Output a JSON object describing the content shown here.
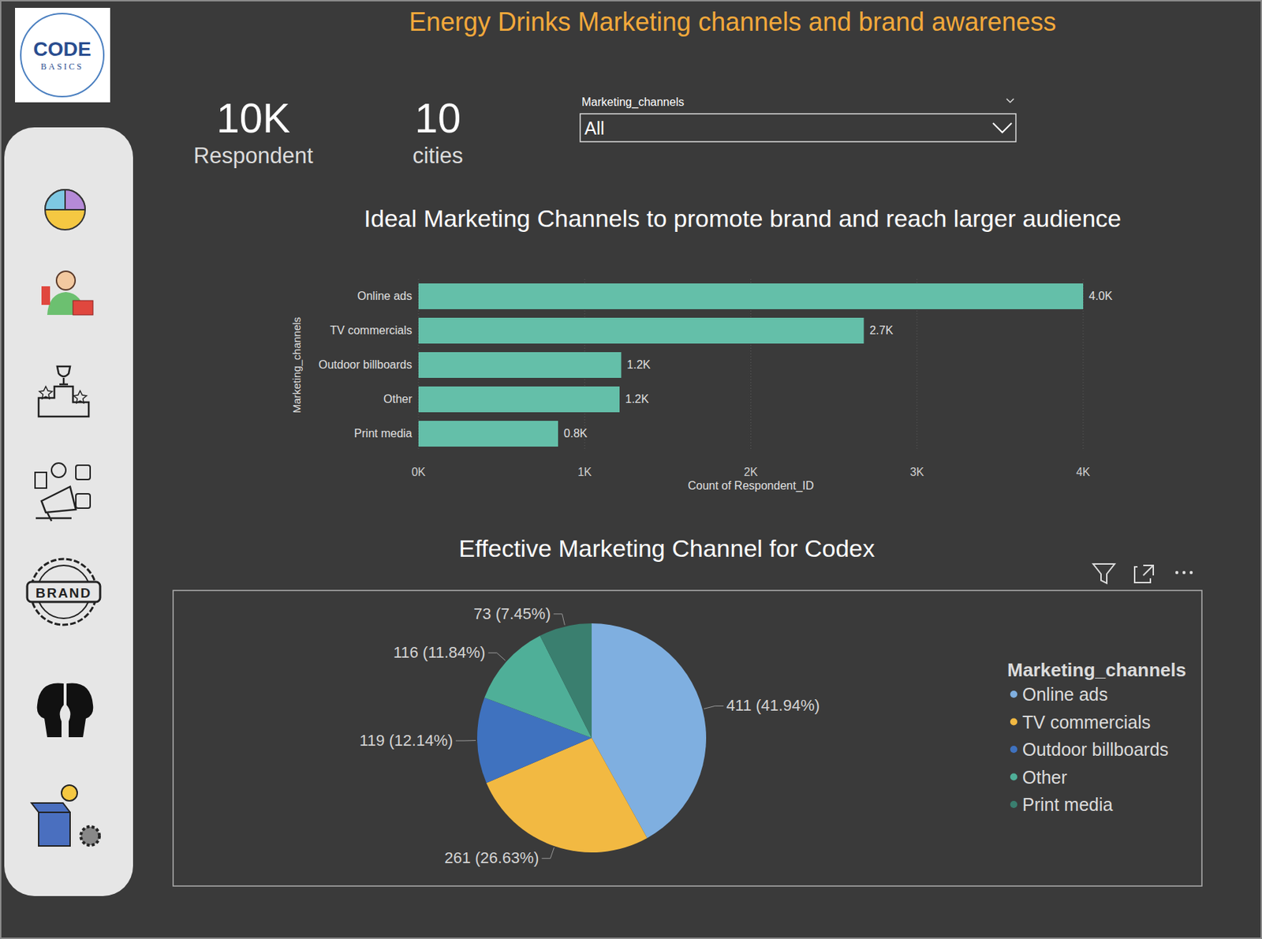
{
  "header": {
    "title": "Energy Drinks Marketing channels and brand awareness",
    "logo_text": "CODE",
    "logo_subtitle": "BASICS"
  },
  "sidebar": {
    "badge_text": "BRAND"
  },
  "kpis": [
    {
      "value": "10K",
      "label": "Respondent"
    },
    {
      "value": "10",
      "label": "cities"
    }
  ],
  "filter": {
    "label": "Marketing_channels",
    "selected": "All"
  },
  "chart_data": [
    {
      "type": "bar",
      "title": "Ideal Marketing Channels to promote brand and reach larger audience",
      "orientation": "horizontal",
      "categories": [
        "Online ads",
        "TV commercials",
        "Outdoor billboards",
        "Other",
        "Print media"
      ],
      "values": [
        4000,
        2680,
        1220,
        1210,
        840
      ],
      "value_labels": [
        "4.0K",
        "2.7K",
        "1.2K",
        "1.2K",
        "0.8K"
      ],
      "color": "#64bfa9",
      "xlabel": "Count of Respondent_ID",
      "ylabel": "Marketing_channels",
      "xlim": [
        0,
        4000
      ],
      "xticks": [
        {
          "value": 0,
          "label": "0K"
        },
        {
          "value": 1000,
          "label": "1K"
        },
        {
          "value": 2000,
          "label": "2K"
        },
        {
          "value": 3000,
          "label": "3K"
        },
        {
          "value": 4000,
          "label": "4K"
        }
      ],
      "grid": true,
      "data_labels": true
    },
    {
      "type": "pie",
      "title": "Effective Marketing Channel for Codex",
      "categories": [
        "Online ads",
        "TV commercials",
        "Outdoor billboards",
        "Other",
        "Print media"
      ],
      "values": [
        411,
        261,
        119,
        116,
        73
      ],
      "value_labels": [
        "411 (41.94%)",
        "261 (26.63%)",
        "119 (12.14%)",
        "116 (11.84%)",
        "73 (7.45%)"
      ],
      "colors": [
        "#7fafe0",
        "#f2b942",
        "#3f72bf",
        "#4faf98",
        "#3a7f6f"
      ],
      "legend": "right",
      "legend_title": "Marketing_channels",
      "data_labels": true
    }
  ]
}
